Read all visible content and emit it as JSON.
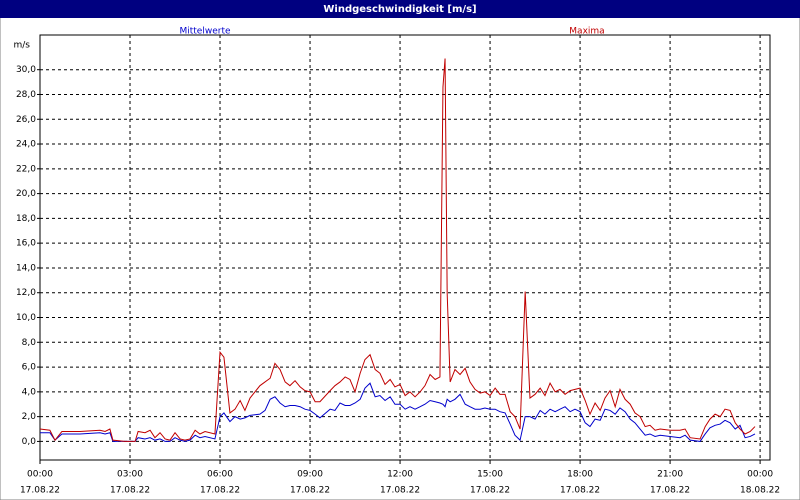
{
  "chart_data": {
    "type": "line",
    "title": "Windgeschwindigkeit [m/s]",
    "y_label": "m/s",
    "grid": true,
    "xlim": [
      0,
      24.33
    ],
    "ylim": [
      -1.5,
      32.8
    ],
    "xticks": [
      {
        "value": 0,
        "label": "00:00"
      },
      {
        "value": 3,
        "label": "03:00"
      },
      {
        "value": 6,
        "label": "06:00"
      },
      {
        "value": 9,
        "label": "09:00"
      },
      {
        "value": 12,
        "label": "12:00"
      },
      {
        "value": 15,
        "label": "15:00"
      },
      {
        "value": 18,
        "label": "18:00"
      },
      {
        "value": 21,
        "label": "21:00"
      },
      {
        "value": 24,
        "label": "00:00"
      }
    ],
    "xtick_dates": [
      "17.08.22",
      "17.08.22",
      "17.08.22",
      "17.08.22",
      "17.08.22",
      "17.08.22",
      "17.08.22",
      "17.08.22",
      "18.08.22"
    ],
    "yticks": [
      {
        "value": 0,
        "label": "0,0"
      },
      {
        "value": 2,
        "label": "2,0"
      },
      {
        "value": 4,
        "label": "4,0"
      },
      {
        "value": 6,
        "label": "6,0"
      },
      {
        "value": 8,
        "label": "8,0"
      },
      {
        "value": 10,
        "label": "10,0"
      },
      {
        "value": 12,
        "label": "12,0"
      },
      {
        "value": 14,
        "label": "14,0"
      },
      {
        "value": 16,
        "label": "16,0"
      },
      {
        "value": 18,
        "label": "18,0"
      },
      {
        "value": 20,
        "label": "20,0"
      },
      {
        "value": 22,
        "label": "22,0"
      },
      {
        "value": 24,
        "label": "24,0"
      },
      {
        "value": 26,
        "label": "26,0"
      },
      {
        "value": 28,
        "label": "28,0"
      },
      {
        "value": 30,
        "label": "30,0"
      }
    ],
    "x": [
      0,
      0.33,
      0.5,
      0.73,
      1.33,
      2,
      2.17,
      2.33,
      2.43,
      2.83,
      3.17,
      3.27,
      3.5,
      3.67,
      3.83,
      4,
      4.17,
      4.33,
      4.5,
      4.67,
      4.83,
      5,
      5.17,
      5.33,
      5.5,
      5.83,
      6,
      6.13,
      6.33,
      6.5,
      6.67,
      6.83,
      7,
      7.33,
      7.5,
      7.67,
      7.83,
      8,
      8.17,
      8.33,
      8.5,
      8.67,
      8.83,
      9,
      9.17,
      9.33,
      9.67,
      9.83,
      10,
      10.17,
      10.33,
      10.5,
      10.67,
      10.83,
      11,
      11.17,
      11.33,
      11.5,
      11.67,
      11.83,
      12,
      12.17,
      12.33,
      12.5,
      12.67,
      12.83,
      13,
      13.17,
      13.33,
      13.43,
      13.5,
      13.57,
      13.67,
      13.83,
      14,
      14.17,
      14.33,
      14.5,
      14.67,
      14.83,
      15,
      15.17,
      15.33,
      15.5,
      15.67,
      15.83,
      16,
      16.17,
      16.33,
      16.5,
      16.67,
      16.83,
      17,
      17.17,
      17.33,
      17.5,
      17.67,
      17.83,
      18,
      18.17,
      18.33,
      18.5,
      18.67,
      18.83,
      19,
      19.17,
      19.33,
      19.5,
      19.67,
      19.83,
      20,
      20.17,
      20.33,
      20.5,
      20.67,
      21,
      21.33,
      21.5,
      21.67,
      22,
      22.17,
      22.33,
      22.5,
      22.67,
      22.83,
      23,
      23.17,
      23.33,
      23.5,
      23.67,
      23.83
    ],
    "series": [
      {
        "name": "Mittelwerte",
        "color": "#0000cc",
        "values": [
          0.7,
          0.7,
          0.1,
          0.6,
          0.6,
          0.7,
          0.6,
          0.7,
          0.0,
          0,
          0,
          0.3,
          0.2,
          0.3,
          0.1,
          0.2,
          0.0,
          0.0,
          0.3,
          0.1,
          0.0,
          0.1,
          0.5,
          0.3,
          0.4,
          0.2,
          2.0,
          2.3,
          1.6,
          2.0,
          1.8,
          1.9,
          2.1,
          2.2,
          2.5,
          3.4,
          3.6,
          3.1,
          2.8,
          2.9,
          2.9,
          2.8,
          2.6,
          2.5,
          2.2,
          1.9,
          2.6,
          2.5,
          3.1,
          2.9,
          2.9,
          3.1,
          3.4,
          4.3,
          4.7,
          3.6,
          3.7,
          3.3,
          3.6,
          3.0,
          3.0,
          2.6,
          2.8,
          2.6,
          2.8,
          3.0,
          3.3,
          3.2,
          3.1,
          3.0,
          2.8,
          3.4,
          3.2,
          3.4,
          3.8,
          3.0,
          2.8,
          2.6,
          2.6,
          2.7,
          2.6,
          2.6,
          2.4,
          2.3,
          1.4,
          0.5,
          0.1,
          2.0,
          2.0,
          1.8,
          2.5,
          2.2,
          2.6,
          2.4,
          2.6,
          2.8,
          2.4,
          2.6,
          2.4,
          1.5,
          1.2,
          1.8,
          1.7,
          2.6,
          2.5,
          2.2,
          2.7,
          2.4,
          1.8,
          1.5,
          1.0,
          0.5,
          0.6,
          0.4,
          0.5,
          0.4,
          0.3,
          0.5,
          0.1,
          0.0,
          0.6,
          1.1,
          1.3,
          1.4,
          1.7,
          1.5,
          1.0,
          1.3,
          0.3,
          0.4,
          0.6
        ]
      },
      {
        "name": "Maxima",
        "color": "#c00000",
        "values": [
          1.0,
          0.9,
          0.1,
          0.8,
          0.8,
          0.9,
          0.8,
          1.0,
          0.1,
          0.0,
          0.0,
          0.8,
          0.7,
          0.9,
          0.3,
          0.7,
          0.2,
          0.1,
          0.7,
          0.2,
          0.1,
          0.2,
          0.9,
          0.6,
          0.8,
          0.6,
          7.2,
          6.8,
          2.3,
          2.6,
          3.3,
          2.5,
          3.5,
          4.5,
          4.8,
          5.1,
          6.3,
          5.8,
          4.8,
          4.5,
          4.9,
          4.4,
          4.1,
          4.0,
          3.2,
          3.2,
          4.1,
          4.5,
          4.8,
          5.2,
          5.0,
          4.0,
          5.5,
          6.6,
          7.0,
          5.8,
          5.5,
          4.6,
          5.0,
          4.4,
          4.6,
          3.7,
          4.0,
          3.6,
          4.0,
          4.5,
          5.4,
          5.0,
          5.2,
          28.6,
          30.9,
          12.0,
          4.8,
          5.8,
          5.4,
          5.9,
          4.8,
          4.2,
          3.9,
          4.0,
          3.7,
          4.3,
          3.8,
          3.8,
          2.4,
          2.0,
          1.0,
          12.1,
          3.5,
          3.8,
          4.3,
          3.7,
          4.7,
          4.0,
          4.2,
          3.8,
          4.1,
          4.2,
          4.3,
          3.3,
          2.2,
          3.1,
          2.5,
          3.5,
          4.1,
          2.8,
          4.2,
          3.4,
          3.0,
          2.3,
          2.0,
          1.2,
          1.3,
          0.9,
          1.0,
          0.9,
          0.9,
          1.0,
          0.3,
          0.2,
          1.2,
          1.8,
          2.2,
          2.0,
          2.6,
          2.5,
          1.5,
          1.0,
          0.6,
          0.8,
          1.2
        ]
      }
    ]
  }
}
